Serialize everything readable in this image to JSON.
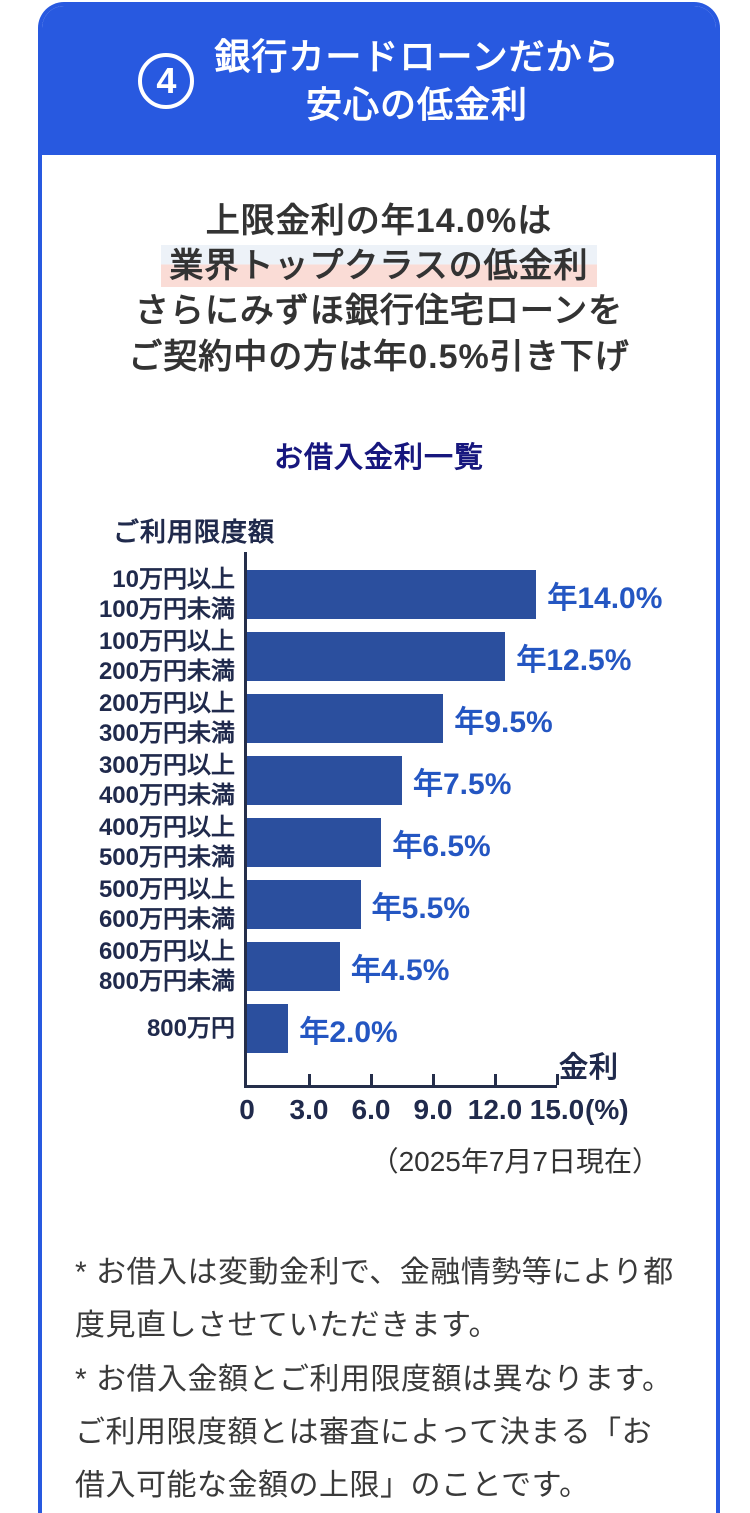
{
  "card": {
    "header": {
      "number_badge": "4",
      "title_line1": "銀行カードローンだから",
      "title_line2": "安心の低金利"
    },
    "headline": {
      "line1": "上限金利の年14.0%は",
      "line2_highlighted": "業界トップクラスの低金利",
      "line3": "さらにみずほ銀行住宅ローンを",
      "line4": "ご契約中の方は年0.5%引き下げ"
    },
    "as_of_date": "（2025年7月7日現在）"
  },
  "chart_data": {
    "type": "bar",
    "orientation": "horizontal",
    "title": "お借入金利一覧",
    "ylabel": "ご利用限度額",
    "xlabel": "金利",
    "x_unit": "(%)",
    "xlim": [
      0,
      15
    ],
    "xticks": [
      "0",
      "3.0",
      "6.0",
      "9.0",
      "12.0",
      "15.0"
    ],
    "xtick_values": [
      0,
      3,
      6,
      9,
      12,
      15
    ],
    "grid": false,
    "categories": [
      [
        "10万円以上",
        "100万円未満"
      ],
      [
        "100万円以上",
        "200万円未満"
      ],
      [
        "200万円以上",
        "300万円未満"
      ],
      [
        "300万円以上",
        "400万円未満"
      ],
      [
        "400万円以上",
        "500万円未満"
      ],
      [
        "500万円以上",
        "600万円未満"
      ],
      [
        "600万円以上",
        "800万円未満"
      ],
      [
        "800万円"
      ]
    ],
    "values": [
      14.0,
      12.5,
      9.5,
      7.5,
      6.5,
      5.5,
      4.5,
      2.0
    ],
    "value_labels": [
      "年14.0%",
      "年12.5%",
      "年9.5%",
      "年7.5%",
      "年6.5%",
      "年5.5%",
      "年4.5%",
      "年2.0%"
    ],
    "as_of": "（2025年7月7日現在）"
  },
  "footnotes": [
    "* お借入は変動金利で、金融情勢等により都度見直しさせていただきます。",
    "* お借入金額とご利用限度額は異なります。ご利用限度額とは審査によって決まる「お借入可能な金額の上限」のことです。"
  ],
  "colors": {
    "header_blue": "#2859E0",
    "bar_blue": "#2B4F9E",
    "value_label_blue": "#2456C2",
    "axis_navy": "#252E4A",
    "chart_title_navy": "#17177E",
    "highlight_top": "#EDF2F8",
    "highlight_bottom": "#FADCD6",
    "body_text": "#333333"
  }
}
